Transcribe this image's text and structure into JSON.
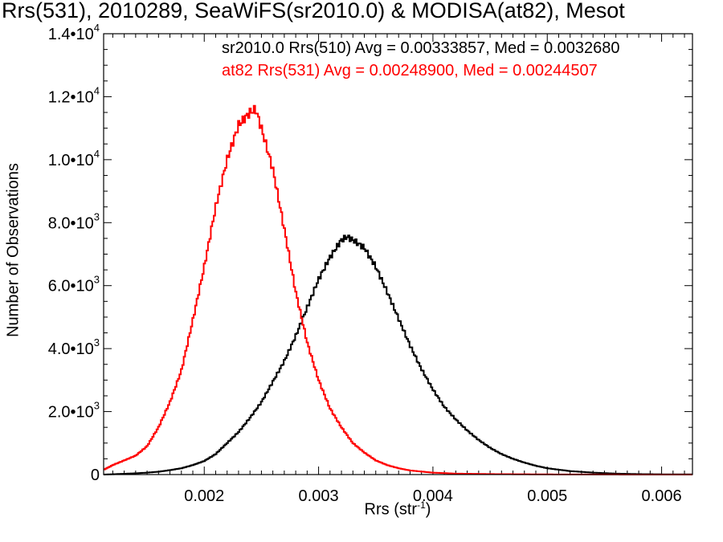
{
  "chart_data": {
    "type": "histogram",
    "title": "Rrs(531), 2010289, SeaWiFS(sr2010.0) & MODISA(at82), Mesot",
    "xlabel_base": "Rrs (str",
    "xlabel_exp": "-1",
    "xlabel_close": ")",
    "ylabel": "Number of Observations",
    "xlim": [
      0.00112,
      0.00627
    ],
    "ylim": [
      0,
      14000
    ],
    "x_ticks": [
      {
        "value": 0.002,
        "label": "0.002"
      },
      {
        "value": 0.003,
        "label": "0.003"
      },
      {
        "value": 0.004,
        "label": "0.004"
      },
      {
        "value": 0.005,
        "label": "0.005"
      },
      {
        "value": 0.006,
        "label": "0.006"
      }
    ],
    "y_ticks": [
      {
        "value": 0,
        "mant": "0",
        "exp": ""
      },
      {
        "value": 2000,
        "mant": "2.0•10",
        "exp": "3"
      },
      {
        "value": 4000,
        "mant": "4.0•10",
        "exp": "3"
      },
      {
        "value": 6000,
        "mant": "6.0•10",
        "exp": "3"
      },
      {
        "value": 8000,
        "mant": "8.0•10",
        "exp": "3"
      },
      {
        "value": 10000,
        "mant": "1.0•10",
        "exp": "4"
      },
      {
        "value": 12000,
        "mant": "1.2•10",
        "exp": "4"
      },
      {
        "value": 14000,
        "mant": "1.4•10",
        "exp": "4"
      }
    ],
    "series": [
      {
        "name": "sr2010.0 Rrs(510) Avg = 0.00333857, Med = 0.0032680",
        "color": "#000000",
        "x": [
          0.00112,
          0.0012,
          0.0013,
          0.0014,
          0.0015,
          0.0016,
          0.0017,
          0.0018,
          0.0019,
          0.002,
          0.0021,
          0.0022,
          0.0023,
          0.0024,
          0.0025,
          0.0026,
          0.0027,
          0.0028,
          0.0029,
          0.003,
          0.0031,
          0.0032,
          0.00325,
          0.0033,
          0.0034,
          0.0035,
          0.0036,
          0.0037,
          0.0038,
          0.0039,
          0.004,
          0.0041,
          0.0042,
          0.0043,
          0.0044,
          0.0045,
          0.0046,
          0.0047,
          0.0048,
          0.0049,
          0.005,
          0.0052,
          0.0054,
          0.0056,
          0.0058,
          0.006,
          0.00627
        ],
        "y": [
          0,
          10,
          25,
          40,
          60,
          90,
          140,
          200,
          300,
          430,
          650,
          1000,
          1350,
          1800,
          2300,
          2950,
          3600,
          4400,
          5300,
          6200,
          6900,
          7450,
          7550,
          7450,
          7200,
          6600,
          5800,
          4950,
          4100,
          3350,
          2700,
          2150,
          1750,
          1400,
          1100,
          850,
          650,
          500,
          380,
          280,
          200,
          110,
          60,
          30,
          15,
          8,
          5
        ]
      },
      {
        "name": "at82 Rrs(531) Avg = 0.00248900, Med = 0.00244507",
        "color": "#ff0000",
        "x": [
          0.00112,
          0.0012,
          0.0013,
          0.0014,
          0.0015,
          0.0016,
          0.0017,
          0.0018,
          0.0019,
          0.002,
          0.0021,
          0.0022,
          0.0023,
          0.0024,
          0.00245,
          0.0025,
          0.0026,
          0.0027,
          0.0028,
          0.0029,
          0.003,
          0.0031,
          0.0032,
          0.0033,
          0.0034,
          0.0035,
          0.0036,
          0.0037,
          0.0038,
          0.004,
          0.0042,
          0.0045,
          0.005,
          0.0055,
          0.00627
        ],
        "y": [
          150,
          300,
          450,
          600,
          900,
          1500,
          2300,
          3300,
          4900,
          6600,
          8500,
          10000,
          11100,
          11500,
          11600,
          11000,
          9700,
          7800,
          5800,
          4200,
          3000,
          2100,
          1500,
          1000,
          700,
          450,
          300,
          200,
          130,
          60,
          30,
          15,
          5,
          2,
          0
        ]
      }
    ]
  }
}
